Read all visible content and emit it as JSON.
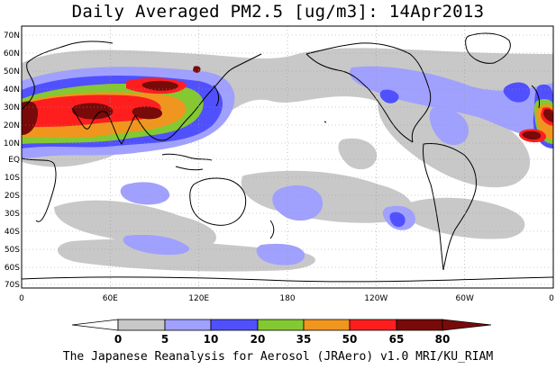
{
  "title": "Daily Averaged PM2.5 [ug/m3]: 14Apr2013",
  "credit": "The Japanese Reanalysis for Aerosol (JRAero) v1.0 MRI/KU_RIAM",
  "map": {
    "projection": "cylindrical equidistant, 0E centered at left edge",
    "lat_ticks": [
      "70N",
      "60N",
      "50N",
      "40N",
      "30N",
      "20N",
      "10N",
      "EQ",
      "10S",
      "20S",
      "30S",
      "40S",
      "50S",
      "60S",
      "70S"
    ],
    "lon_ticks": [
      "0",
      "60E",
      "120E",
      "180",
      "120W",
      "60W",
      "0"
    ],
    "grid": "dotted"
  },
  "colorbar": {
    "levels": [
      "0",
      "5",
      "10",
      "20",
      "35",
      "50",
      "65",
      "80"
    ],
    "colors": [
      "#ffffff",
      "#c8c8c8",
      "#a0a0ff",
      "#5050ff",
      "#84c832",
      "#f0961e",
      "#ff1e1e",
      "#780a0a"
    ],
    "extend": "both"
  },
  "colors": {
    "land_outline": "#000000",
    "grid": "#9a9a9a"
  }
}
